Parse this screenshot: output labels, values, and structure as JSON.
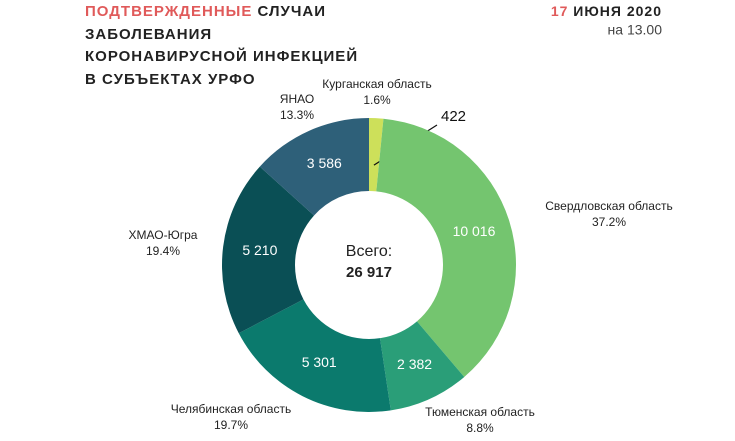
{
  "chart_data": {
    "type": "donut",
    "title_highlight": "ПОДТВЕРЖДЕННЫЕ",
    "title_lines": [
      "СЛУЧАИ",
      "ЗАБОЛЕВАНИЯ",
      "КОРОНАВИРУСНОЙ ИНФЕКЦИЕЙ",
      "В СУБЪЕКТАХ УРФО"
    ],
    "date_day": "17",
    "date_rest": "ИЮНЯ 2020",
    "date_time": "на 13.00",
    "total_caption": "Всего:",
    "total": {
      "value": 26917,
      "label": "26 917"
    },
    "categories": [
      "Курганская область",
      "Свердловская область",
      "Тюменская область",
      "Челябинская область",
      "ХМАО-Югра",
      "ЯНАО"
    ],
    "values": [
      422,
      10016,
      2382,
      5301,
      5210,
      3586
    ],
    "value_labels": [
      "422",
      "10 016",
      "2 382",
      "5 301",
      "5 210",
      "3 586"
    ],
    "percent_labels": [
      "1.6%",
      "37.2%",
      "8.8%",
      "19.7%",
      "19.4%",
      "13.3%"
    ],
    "colors": [
      "#cde05a",
      "#74c56f",
      "#2a9e78",
      "#0b7a6d",
      "#0a4f55",
      "#2e6079"
    ],
    "highlight_color": "#e05a5a"
  }
}
